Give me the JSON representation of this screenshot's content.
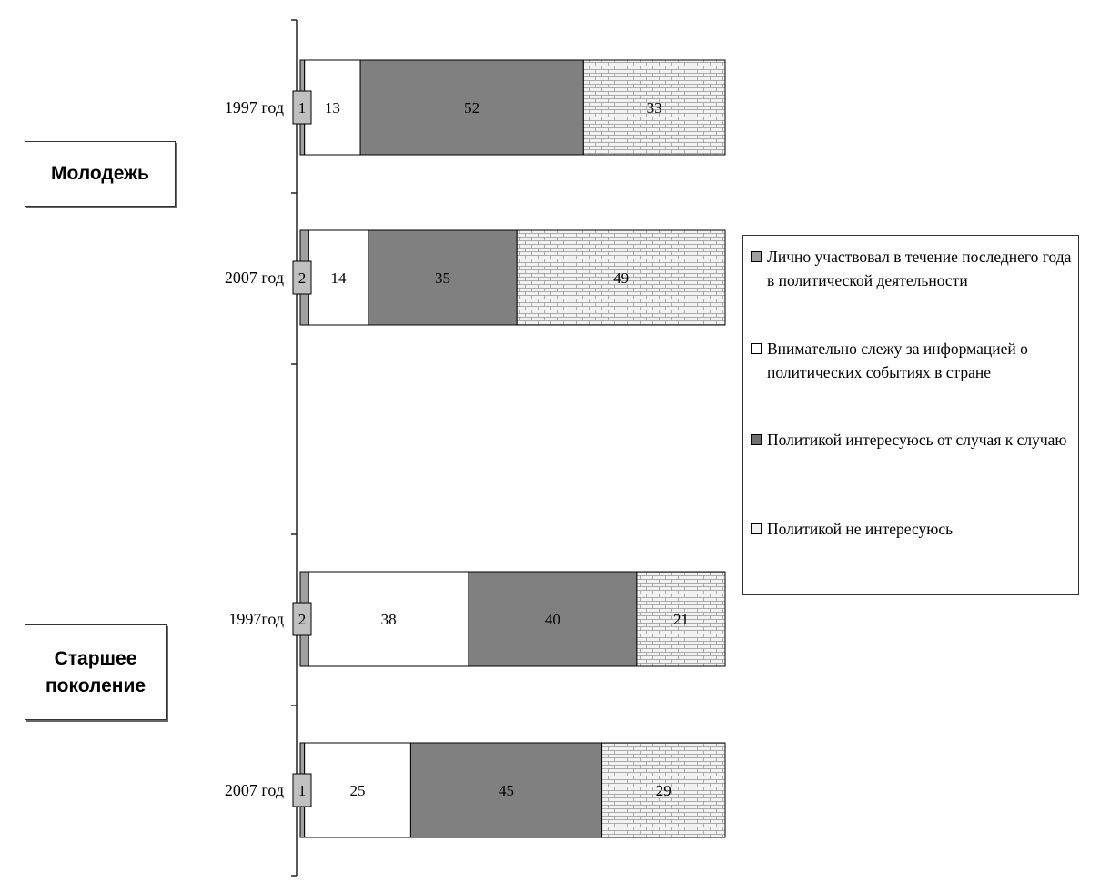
{
  "chart_data": {
    "type": "bar",
    "orientation": "horizontal",
    "stacked": true,
    "groups": [
      {
        "label": "Молодежь",
        "categories": [
          "1997 год",
          "2007 год"
        ]
      },
      {
        "label": "Старшее поколение",
        "categories": [
          "1997год",
          "2007 год"
        ]
      }
    ],
    "categories": [
      "1997 год",
      "2007 год",
      "1997год",
      "2007 год"
    ],
    "series": [
      {
        "name": "Лично участвовал в течение последнего года в политической деятельности",
        "values": [
          1,
          2,
          2,
          1
        ],
        "color": "#a0a0a0"
      },
      {
        "name": "Внимательно слежу за информацией о политических событиях в стране",
        "values": [
          13,
          14,
          38,
          25
        ],
        "color": "#ffffff"
      },
      {
        "name": "Политикой интересуюсь от случая к случаю",
        "values": [
          52,
          35,
          40,
          45
        ],
        "color": "#808080"
      },
      {
        "name": "Политикой не интересуюсь",
        "values": [
          33,
          49,
          21,
          29
        ],
        "color": "#f2f2f2",
        "pattern": "brick"
      }
    ],
    "xlim": [
      0,
      100
    ],
    "grid": false,
    "legend_position": "right"
  }
}
